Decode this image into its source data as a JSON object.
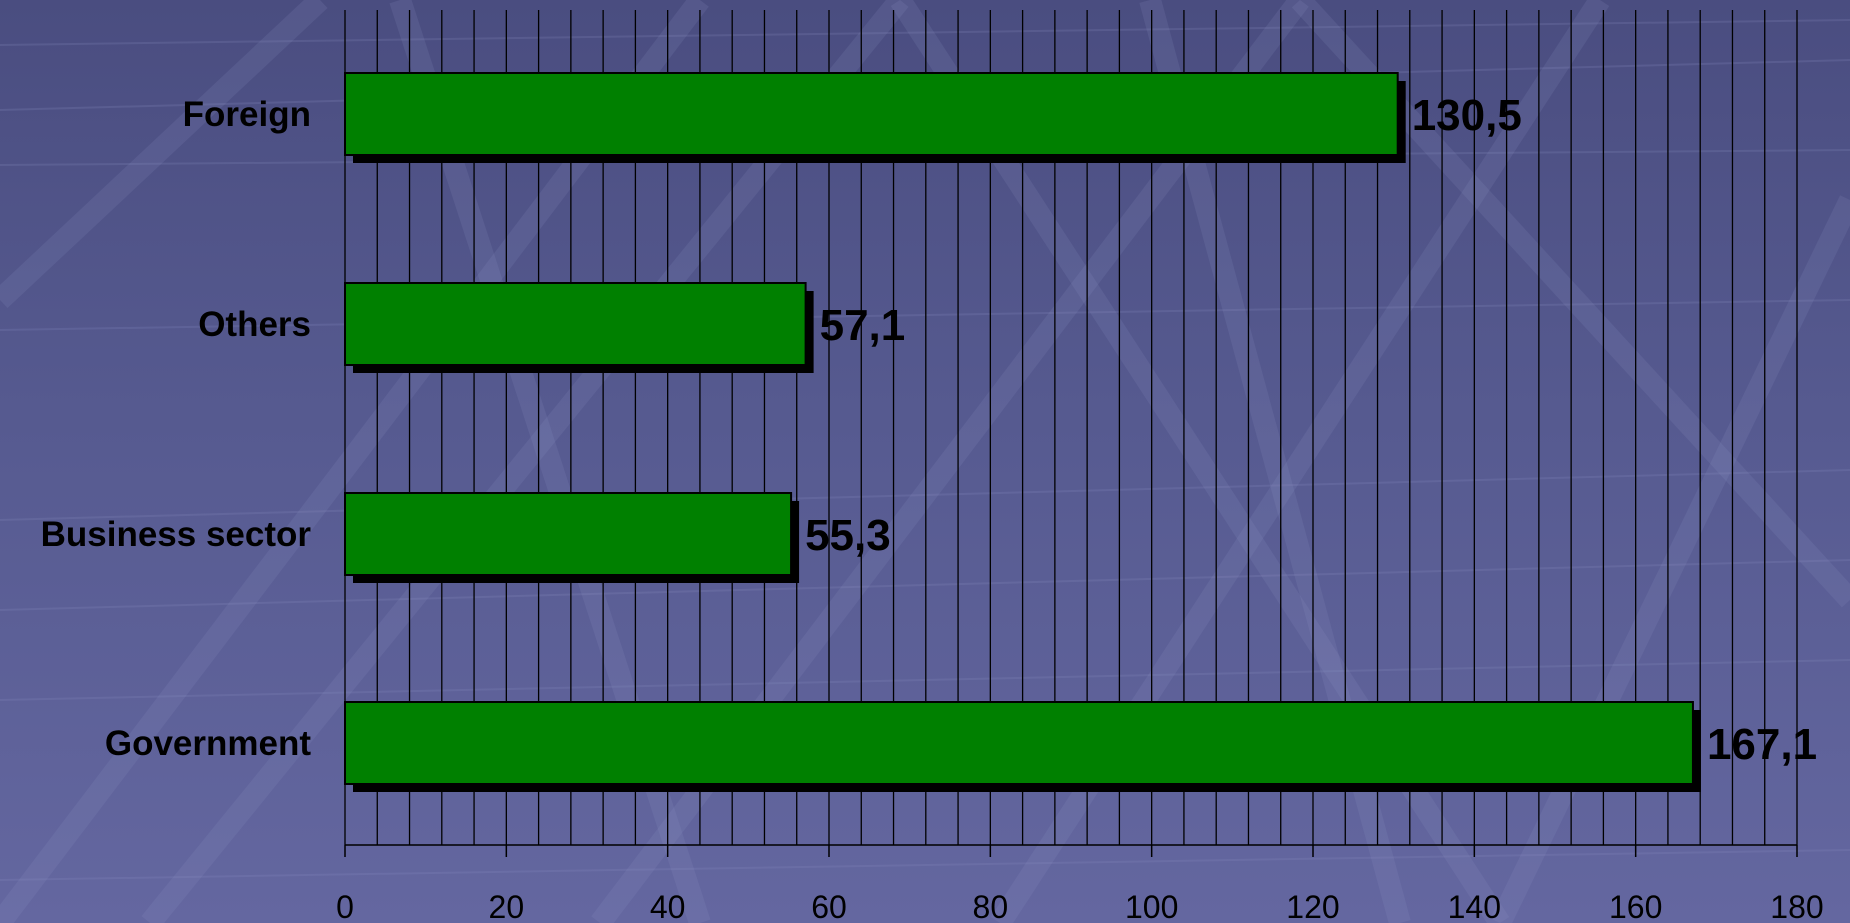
{
  "colors": {
    "bar_fill": "#008000",
    "bar_shadow": "#000000",
    "background": "#555890",
    "gridline": "#000000"
  },
  "chart_data": {
    "type": "bar",
    "orientation": "horizontal",
    "categories": [
      "Foreign",
      "Others",
      "Business sector",
      "Government"
    ],
    "values": [
      130.5,
      57.1,
      55.3,
      167.1
    ],
    "value_labels": [
      "130,5",
      "57,1",
      "55,3",
      "167,1"
    ],
    "xlim": [
      0,
      180
    ],
    "x_ticks": [
      0,
      20,
      40,
      60,
      80,
      100,
      120,
      140,
      160,
      180
    ],
    "x_minor_step": 4,
    "grid": true,
    "legend": "none",
    "title": "",
    "xlabel": "",
    "ylabel": ""
  }
}
